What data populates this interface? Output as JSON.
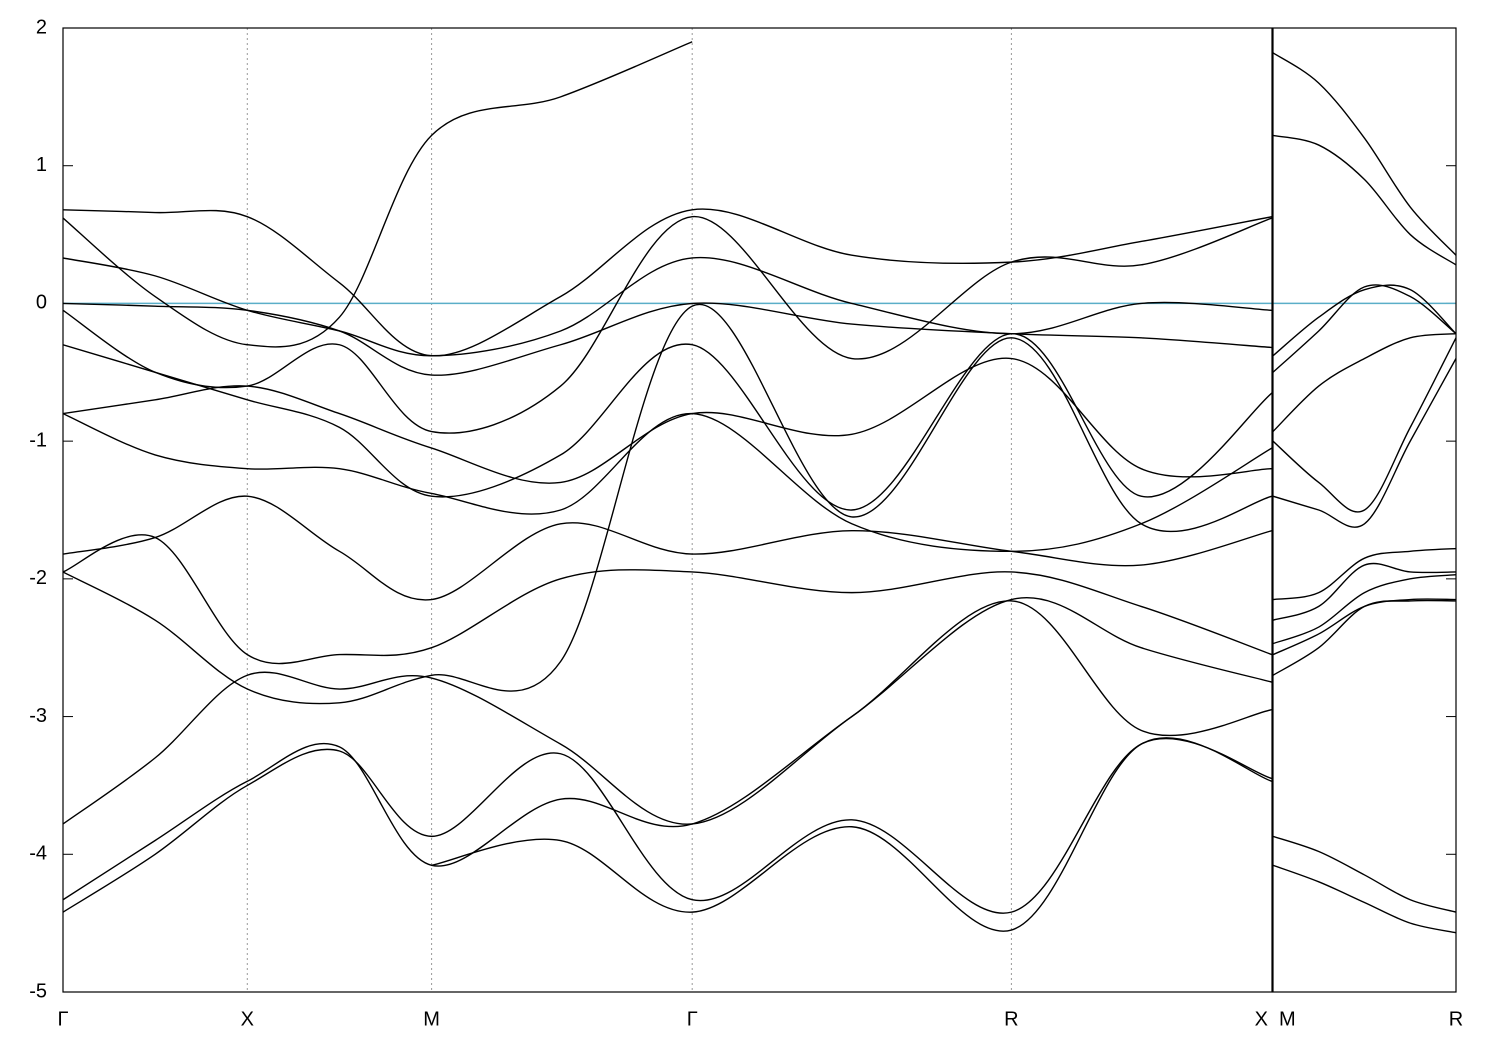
{
  "chart_data": [
    {
      "type": "line",
      "xlim": [
        0,
        6.56
      ],
      "xticks": [
        {
          "value": 0,
          "label": "Γ"
        },
        {
          "value": 1,
          "label": "X"
        },
        {
          "value": 2,
          "label": "M"
        },
        {
          "value": 3.414,
          "label": "Γ"
        },
        {
          "value": 5.146,
          "label": "R"
        },
        {
          "value": 6.56,
          "label": "X"
        }
      ],
      "ylim": [
        -5,
        2
      ],
      "yticks": [
        -5,
        -4,
        -3,
        -2,
        -1,
        0,
        1,
        2
      ],
      "grid": "x",
      "reference_line": 0,
      "reference_color": "#5aaec8",
      "x": [
        0,
        0.5,
        1,
        1.5,
        2,
        2.7,
        3.414,
        4.28,
        5.146,
        5.85,
        6.56
      ],
      "series": [
        {
          "color": "#000000",
          "values": [
            0.68,
            0.66,
            0.63,
            0.15,
            -0.38,
            0.05,
            0.68,
            0.35,
            0.3,
            0.45,
            0.63
          ]
        },
        {
          "color": "#000000",
          "values": [
            0.62,
            0.05,
            -0.3,
            -0.1,
            1.22,
            1.5,
            1.9,
            null,
            null,
            null,
            null
          ]
        },
        {
          "color": "#000000",
          "values": [
            0.33,
            0.2,
            -0.05,
            -0.2,
            -0.38,
            -0.2,
            0.33,
            0.0,
            -0.22,
            0.0,
            -0.05
          ]
        },
        {
          "color": "#000000",
          "values": [
            0.0,
            -0.02,
            -0.05,
            -0.2,
            -0.52,
            -0.3,
            0.0,
            -0.15,
            -0.22,
            -0.25,
            -0.32
          ]
        },
        {
          "color": "#000000",
          "values": [
            -0.05,
            -0.5,
            -0.6,
            -0.3,
            -0.93,
            -0.6,
            0.63,
            -0.4,
            0.3,
            0.28,
            0.62
          ]
        },
        {
          "color": "#000000",
          "values": [
            -0.3,
            -0.5,
            -0.7,
            -0.9,
            -1.4,
            -1.1,
            -0.3,
            -1.5,
            -0.22,
            -1.4,
            -0.65
          ]
        },
        {
          "color": "#000000",
          "values": [
            -0.8,
            -0.7,
            -0.6,
            -0.8,
            -1.05,
            -1.3,
            -0.8,
            -0.95,
            -0.4,
            -1.2,
            -1.2
          ]
        },
        {
          "color": "#000000",
          "values": [
            -0.8,
            -1.1,
            -1.2,
            -1.2,
            -1.38,
            -1.5,
            -0.8,
            -1.6,
            -1.8,
            -1.6,
            -1.05
          ]
        },
        {
          "color": "#000000",
          "values": [
            -1.82,
            -1.7,
            -1.4,
            -1.8,
            -2.15,
            -1.6,
            -1.82,
            -1.65,
            -1.8,
            -1.9,
            -1.65
          ]
        },
        {
          "color": "#000000",
          "values": [
            -1.95,
            -1.7,
            -2.55,
            -2.55,
            -2.5,
            -2.0,
            -1.95,
            -2.1,
            -1.95,
            -2.2,
            -2.55
          ]
        },
        {
          "color": "#000000",
          "values": [
            -1.95,
            -2.3,
            -2.8,
            -2.9,
            -2.7,
            -2.6,
            -0.02,
            -1.55,
            -0.25,
            -1.6,
            -1.4
          ]
        },
        {
          "color": "#000000",
          "values": [
            -3.78,
            -3.3,
            -2.7,
            -2.8,
            -2.72,
            -3.2,
            -3.78,
            -3.0,
            -2.15,
            -2.5,
            -2.75
          ]
        },
        {
          "color": "#000000",
          "values": [
            -4.33,
            -3.9,
            -3.47,
            -3.22,
            -4.08,
            -3.6,
            -3.78,
            -3.0,
            -2.16,
            -3.1,
            -2.95
          ]
        },
        {
          "color": "#000000",
          "values": [
            -4.42,
            -4.0,
            -3.5,
            -3.25,
            -3.87,
            -3.27,
            -4.33,
            -3.75,
            -4.42,
            -3.2,
            -3.45
          ]
        },
        {
          "color": "#000000",
          "values": [
            null,
            null,
            null,
            null,
            -4.08,
            -3.9,
            -4.42,
            -3.8,
            -4.55,
            -3.2,
            -3.47
          ]
        }
      ]
    },
    {
      "type": "line",
      "xlim": [
        0,
        1
      ],
      "xticks": [
        {
          "value": 0,
          "label": "M"
        },
        {
          "value": 1,
          "label": "R"
        }
      ],
      "ylim": [
        -5,
        2
      ],
      "yticks": [
        -5,
        -4,
        -3,
        -2,
        -1,
        0,
        1,
        2
      ],
      "grid": "x",
      "reference_line": 0,
      "reference_color": "#5aaec8",
      "x": [
        0,
        0.25,
        0.5,
        0.75,
        1
      ],
      "series": [
        {
          "color": "#000000",
          "values": [
            1.82,
            1.6,
            1.2,
            0.7,
            0.35
          ]
        },
        {
          "color": "#000000",
          "values": [
            1.22,
            1.15,
            0.9,
            0.5,
            0.28
          ]
        },
        {
          "color": "#000000",
          "values": [
            -0.38,
            -0.1,
            0.1,
            0.1,
            -0.22
          ]
        },
        {
          "color": "#000000",
          "values": [
            -0.5,
            -0.2,
            0.12,
            0.05,
            -0.22
          ]
        },
        {
          "color": "#000000",
          "values": [
            -0.93,
            -0.6,
            -0.4,
            -0.25,
            -0.22
          ]
        },
        {
          "color": "#000000",
          "values": [
            -1.0,
            -1.3,
            -1.5,
            -0.9,
            -0.25
          ]
        },
        {
          "color": "#000000",
          "values": [
            -1.4,
            -1.5,
            -1.6,
            -1.0,
            -0.4
          ]
        },
        {
          "color": "#000000",
          "values": [
            -2.15,
            -2.1,
            -1.85,
            -1.8,
            -1.78
          ]
        },
        {
          "color": "#000000",
          "values": [
            -2.3,
            -2.2,
            -1.9,
            -1.95,
            -1.95
          ]
        },
        {
          "color": "#000000",
          "values": [
            -2.47,
            -2.35,
            -2.1,
            -2.0,
            -1.97
          ]
        },
        {
          "color": "#000000",
          "values": [
            -2.55,
            -2.4,
            -2.2,
            -2.15,
            -2.15
          ]
        },
        {
          "color": "#000000",
          "values": [
            -2.7,
            -2.5,
            -2.2,
            -2.16,
            -2.16
          ]
        },
        {
          "color": "#000000",
          "values": [
            -3.87,
            -3.98,
            -4.15,
            -4.33,
            -4.42
          ]
        },
        {
          "color": "#000000",
          "values": [
            -4.08,
            -4.2,
            -4.35,
            -4.5,
            -4.57
          ]
        }
      ]
    }
  ]
}
